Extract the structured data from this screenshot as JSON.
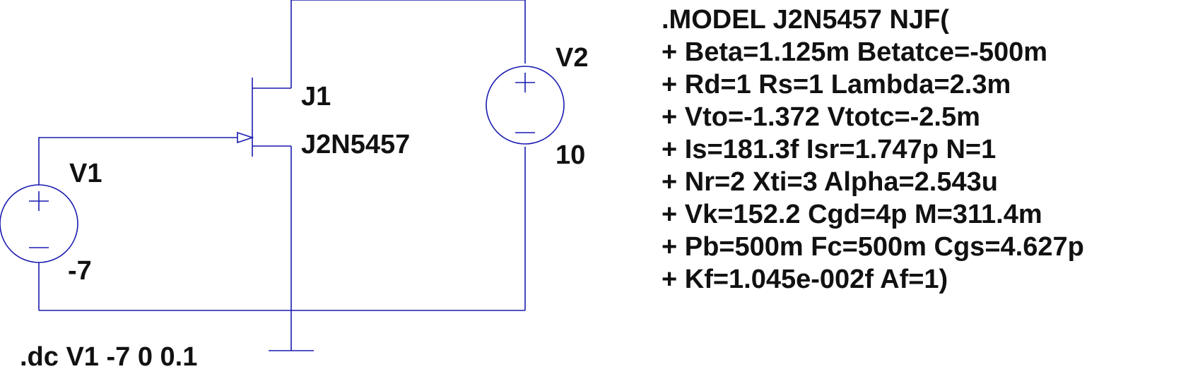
{
  "colors": {
    "wire": "#1a1ab0",
    "text": "#111111",
    "background": "#ffffff"
  },
  "components": {
    "v1": {
      "name": "V1",
      "value": "-7"
    },
    "v2": {
      "name": "V2",
      "value": "10"
    },
    "j1": {
      "name": "J1",
      "model": "J2N5457"
    }
  },
  "directive": ".dc V1 -7 0 0.1",
  "model_lines": [
    ".MODEL J2N5457 NJF(",
    "+ Beta=1.125m Betatce=-500m",
    "+ Rd=1 Rs=1 Lambda=2.3m",
    "+ Vto=-1.372 Vtotc=-2.5m",
    "+ Is=181.3f Isr=1.747p N=1",
    "+ Nr=2 Xti=3 Alpha=2.543u",
    "+ Vk=152.2 Cgd=4p M=311.4m",
    "+ Pb=500m Fc=500m Cgs=4.627p",
    "+ Kf=1.045e-002f Af=1)"
  ]
}
